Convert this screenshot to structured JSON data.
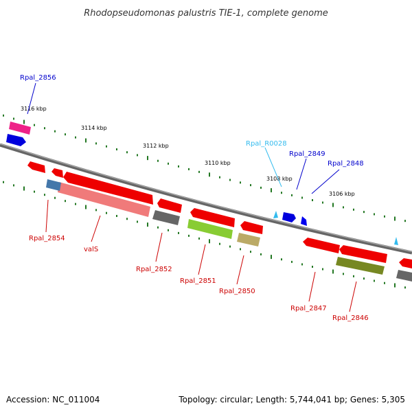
{
  "title": "Rhodopseudomonas palustris TIE-1, complete genome",
  "footer": {
    "accession": "Accession: NC_011004",
    "summary": "Topology: circular; Length: 5,744,041 bp; Genes: 5,305"
  },
  "ruler": {
    "labels": [
      "3116 kbp",
      "3114 kbp",
      "3112 kbp",
      "3110 kbp",
      "3108 kbp",
      "3106 kbp"
    ]
  },
  "genes": [
    {
      "id": "Rpal_2856",
      "color": "#0000cc"
    },
    {
      "id": "Rpal_R0028",
      "color": "#33bbee"
    },
    {
      "id": "Rpal_2849",
      "color": "#0000cc"
    },
    {
      "id": "Rpal_2848",
      "color": "#0000cc"
    },
    {
      "id": "Rpal_2854",
      "color": "#cc0000"
    },
    {
      "id": "valS",
      "color": "#cc0000"
    },
    {
      "id": "Rpal_2852",
      "color": "#cc0000"
    },
    {
      "id": "Rpal_2851",
      "color": "#cc0000"
    },
    {
      "id": "Rpal_2850",
      "color": "#cc0000"
    },
    {
      "id": "Rpal_2847",
      "color": "#cc0000"
    },
    {
      "id": "Rpal_2846",
      "color": "#cc0000"
    }
  ]
}
